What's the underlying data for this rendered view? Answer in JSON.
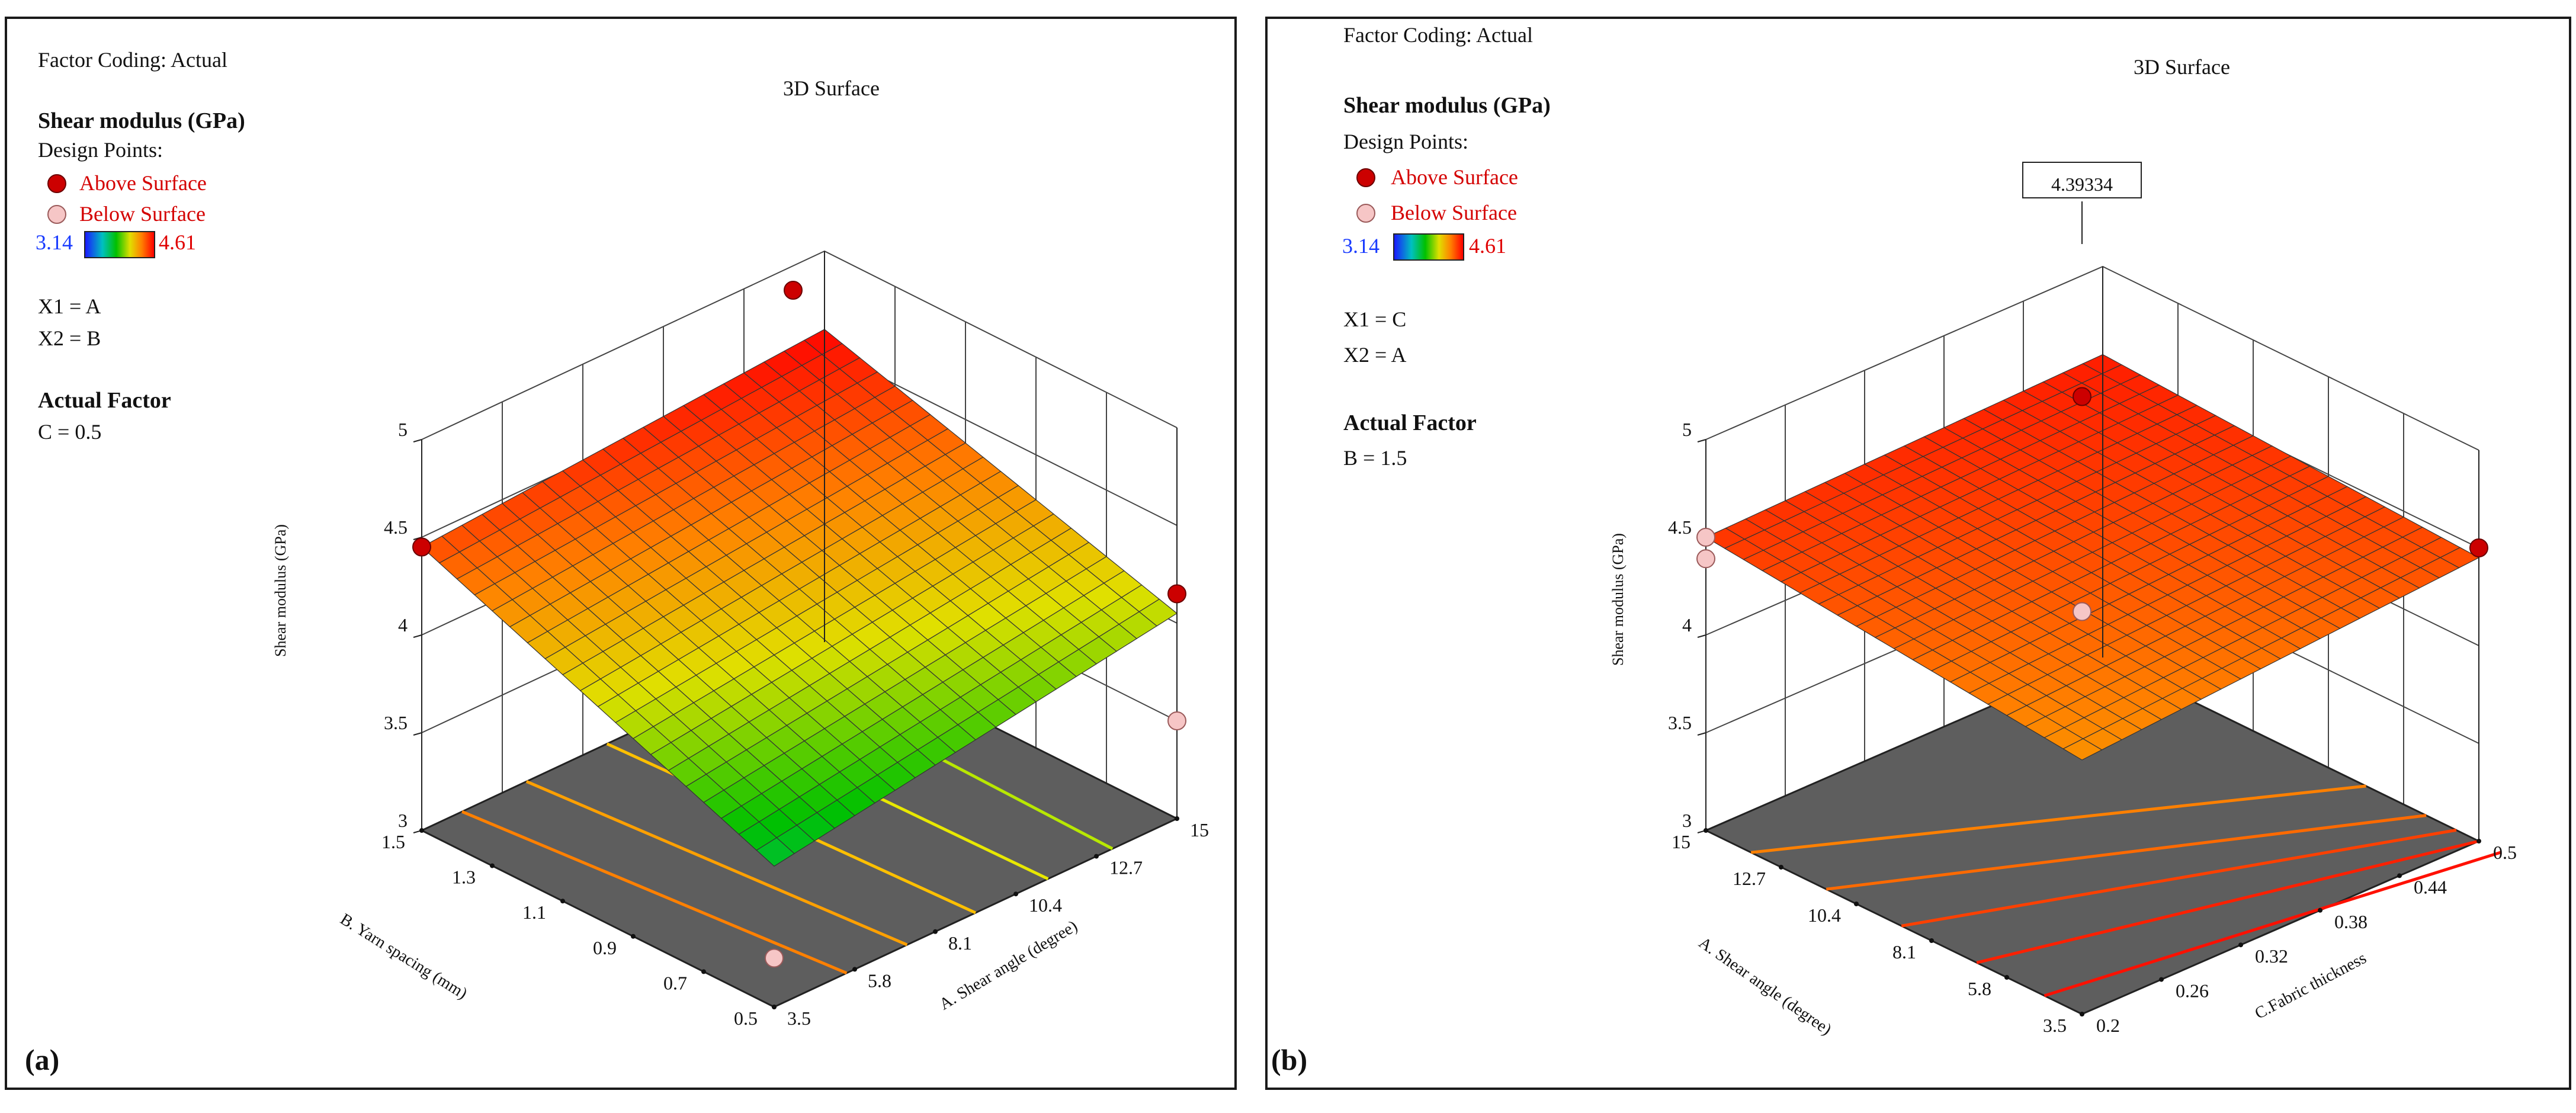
{
  "panels": [
    {
      "label": "(a)",
      "factor_coding": "Factor Coding: Actual",
      "title": "3D Surface",
      "response": "Shear modulus (GPa)",
      "design_points_label": "Design Points:",
      "legend_above": "Above Surface",
      "legend_below": "Below Surface",
      "color_min": "3.14",
      "color_max": "4.61",
      "x1": "X1 = A",
      "x2": "X2 = B",
      "actual_factor_title": "Actual Factor",
      "actual_factor_value": "C = 0.5",
      "annotation": ""
    },
    {
      "label": "(b)",
      "factor_coding": "Factor Coding: Actual",
      "title": "3D Surface",
      "response": "Shear modulus (GPa)",
      "design_points_label": "Design Points:",
      "legend_above": "Above Surface",
      "legend_below": "Below Surface",
      "color_min": "3.14",
      "color_max": "4.61",
      "x1": "X1 = C",
      "x2": "X2 = A",
      "actual_factor_title": "Actual Factor",
      "actual_factor_value": "B = 1.5",
      "annotation": "4.39334"
    }
  ],
  "colors": {
    "above_point": "#cc0000",
    "below_point": "#f6c6c6",
    "floor": "#5e5e5e",
    "colorbar_low": "#1a1aff",
    "colorbar_high": "#ff0000"
  },
  "chart_data": [
    {
      "type": "surface",
      "title": "3D Surface",
      "zlabel": "Shear modulus (GPa)",
      "zlim": [
        3,
        5
      ],
      "z_ticks": [
        "3",
        "3.5",
        "4",
        "4.5",
        "5"
      ],
      "xlabel": "B. Yarn spacing (mm)",
      "x_ticks": [
        "1.5",
        "1.3",
        "1.1",
        "0.9",
        "0.7",
        "0.5"
      ],
      "ylabel": "A. Shear angle (degree)",
      "y_ticks": [
        "3.5",
        "5.8",
        "8.1",
        "10.4",
        "12.7",
        "15"
      ],
      "surface_corners": {
        "B1.5_A3.5": 4.45,
        "B1.5_A15": 4.6,
        "B0.5_A3.5": 3.72,
        "B0.5_A15": 4.05
      },
      "design_points": [
        {
          "B": 1.5,
          "A": 3.5,
          "z": 4.45,
          "position": "above"
        },
        {
          "B": 1.5,
          "A": 15,
          "z": 4.8,
          "position": "above"
        },
        {
          "B": 0.5,
          "A": 15,
          "z": 4.15,
          "position": "above"
        },
        {
          "B": 0.5,
          "A": 15,
          "z": 3.5,
          "position": "below"
        },
        {
          "B": 0.5,
          "A": 3.5,
          "z": 3.25,
          "position": "below"
        }
      ],
      "contour_colors": [
        "#ff8000",
        "#ffa000",
        "#ffc000",
        "#e8e800",
        "#b8e800"
      ]
    },
    {
      "type": "surface",
      "title": "3D Surface",
      "zlabel": "Shear modulus (GPa)",
      "zlim": [
        3,
        5
      ],
      "z_ticks": [
        "3",
        "3.5",
        "4",
        "4.5",
        "5"
      ],
      "xlabel": "A. Shear angle (degree)",
      "x_ticks": [
        "15",
        "12.7",
        "10.4",
        "8.1",
        "5.8",
        "3.5"
      ],
      "ylabel": "C.Fabric thickness",
      "y_ticks": [
        "0.2",
        "0.26",
        "0.32",
        "0.38",
        "0.44",
        "0.5"
      ],
      "surface_corners": {
        "A15_C0.2": 4.5,
        "A15_C0.5": 4.55,
        "A3.5_C0.2": 4.3,
        "A3.5_C0.5": 4.45
      },
      "design_points": [
        {
          "A": 15,
          "C": 0.2,
          "z": 4.5,
          "position": "below"
        },
        {
          "A": 15,
          "C": 0.2,
          "z": 4.39,
          "position": "below"
        },
        {
          "A": 15,
          "C": 0.5,
          "z": 4.5,
          "position": "above"
        },
        {
          "A": 3.5,
          "C": 0.2,
          "z": 4.75,
          "position": "above"
        },
        {
          "A": 3.5,
          "C": 0.2,
          "z": 3.65,
          "position": "below"
        }
      ],
      "contour_colors": [
        "#ff8000",
        "#ff6a00",
        "#ff4000",
        "#ff2000",
        "#ff1000"
      ]
    }
  ]
}
